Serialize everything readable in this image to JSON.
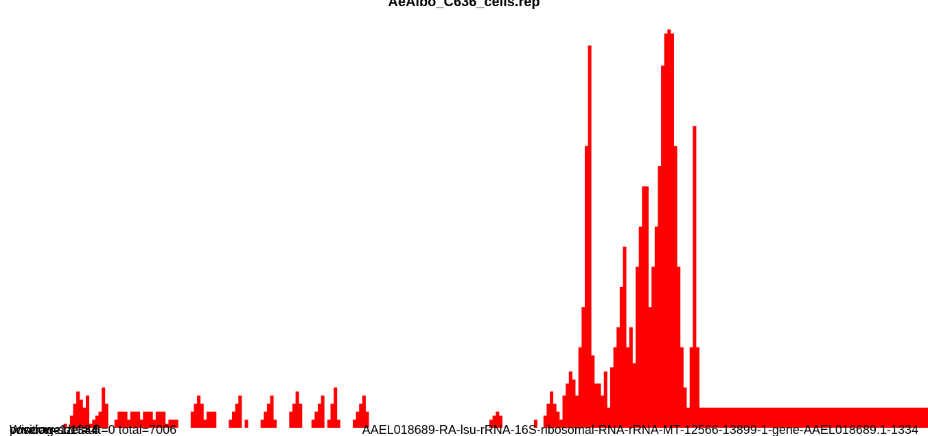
{
  "chart_data": {
    "type": "bar",
    "title": "AeAlbo_C636_cells.rep",
    "xlabel": "",
    "ylabel": "",
    "grid": false,
    "legend": "none",
    "color": "#ff0000",
    "footer_texts": [
      "Window size = 5",
      "coverage.default=0 total=7006",
      "position=1-1334",
      "AAEL018689-RA-lsu-rRNA-16S-ribosomal-RNA-rRNA-MT-12566-13899-1-gene-AAEL018689.1-1334"
    ],
    "bar_count": 267,
    "ylim": [
      0,
      100
    ],
    "values": [
      0,
      0,
      0,
      0,
      0,
      0,
      0,
      0,
      0,
      0,
      0,
      0,
      0,
      0,
      0,
      0,
      0,
      0,
      0,
      0,
      1,
      0,
      3,
      6,
      9,
      7,
      5,
      8,
      1,
      2,
      3,
      4,
      10,
      6,
      0,
      0,
      2,
      4,
      4,
      4,
      2,
      4,
      4,
      4,
      2,
      4,
      4,
      4,
      2,
      4,
      4,
      4,
      1,
      2,
      2,
      2,
      0,
      0,
      0,
      0,
      4,
      6,
      8,
      6,
      2,
      4,
      4,
      4,
      0,
      0,
      0,
      0,
      2,
      4,
      6,
      8,
      0,
      2,
      0,
      0,
      0,
      0,
      2,
      4,
      6,
      8,
      2,
      0,
      0,
      0,
      0,
      4,
      6,
      9,
      6,
      0,
      0,
      0,
      2,
      4,
      6,
      8,
      0,
      2,
      6,
      10,
      2,
      0,
      0,
      0,
      0,
      2,
      4,
      6,
      8,
      4,
      0,
      0,
      0,
      0,
      0,
      0,
      0,
      0,
      0,
      0,
      0,
      0,
      0,
      0,
      0,
      0,
      0,
      0,
      0,
      0,
      0,
      0,
      0,
      0,
      0,
      0,
      0,
      0,
      0,
      0,
      0,
      0,
      0,
      0,
      0,
      0,
      0,
      0,
      2,
      3,
      4,
      3,
      0,
      0,
      0,
      0,
      0,
      0,
      0,
      0,
      0,
      0,
      2,
      0,
      0,
      3,
      6,
      9,
      6,
      4,
      2,
      8,
      11,
      14,
      12,
      8,
      20,
      30,
      70,
      95,
      18,
      11,
      11,
      8,
      14,
      5,
      15,
      20,
      25,
      35,
      45,
      20,
      25,
      16,
      40,
      50,
      60,
      60,
      30,
      40,
      50,
      65,
      90,
      98,
      99,
      98,
      70,
      40,
      20,
      10,
      5,
      20,
      75,
      20,
      5,
      5,
      5,
      5,
      5,
      5,
      5,
      5,
      5,
      5,
      5,
      5,
      5,
      5,
      5,
      5,
      5,
      5,
      5,
      5,
      5,
      5,
      5,
      5,
      5,
      5,
      5,
      5,
      5,
      5,
      5,
      5,
      5,
      5,
      5,
      5,
      5,
      5,
      5,
      5,
      5,
      5,
      5,
      5,
      5,
      5,
      5,
      5,
      5,
      5,
      5,
      5,
      5,
      5,
      5,
      5,
      5,
      5,
      5,
      5,
      5,
      5,
      5,
      5,
      5,
      5,
      5,
      5,
      5,
      5,
      5,
      5
    ]
  }
}
